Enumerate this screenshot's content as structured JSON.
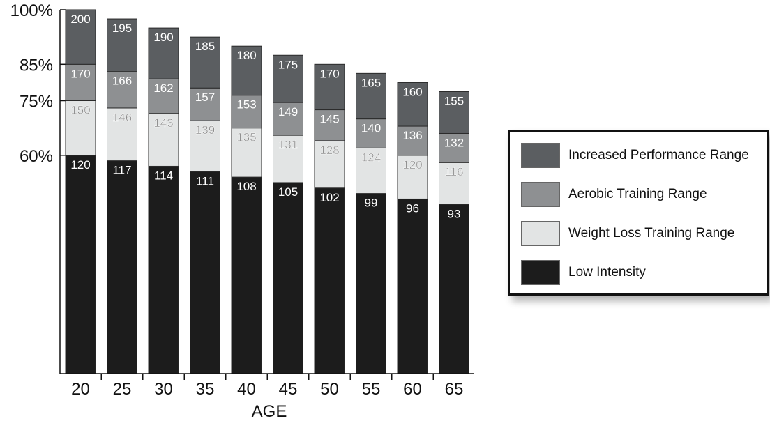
{
  "chart_data": {
    "type": "bar",
    "stacked": true,
    "title": "",
    "xlabel": "AGE",
    "ylabel": "",
    "categories": [
      "20",
      "25",
      "30",
      "35",
      "40",
      "45",
      "50",
      "55",
      "60",
      "65"
    ],
    "y_tick_labels": [
      "100%",
      "85%",
      "75%",
      "60%"
    ],
    "y_tick_values": [
      100,
      85,
      75,
      60
    ],
    "ylim": [
      0,
      100
    ],
    "max_heart_rate": [
      200,
      195,
      190,
      185,
      180,
      175,
      170,
      165,
      160,
      155
    ],
    "boundaries": {
      "60%": [
        120,
        117,
        114,
        111,
        108,
        105,
        102,
        99,
        96,
        93
      ],
      "75%": [
        150,
        146,
        143,
        139,
        135,
        131,
        128,
        124,
        120,
        116
      ],
      "85%": [
        170,
        166,
        162,
        157,
        153,
        149,
        145,
        140,
        136,
        132
      ],
      "100%": [
        200,
        195,
        190,
        185,
        180,
        175,
        170,
        165,
        160,
        155
      ]
    },
    "series": [
      {
        "name": "Low Intensity",
        "color": "#1c1c1c",
        "label_color": "#ffffff",
        "range_percent": [
          0,
          60
        ],
        "labels": [
          120,
          117,
          114,
          111,
          108,
          105,
          102,
          99,
          96,
          93
        ]
      },
      {
        "name": "Weight Loss Training Range",
        "color": "#e2e4e4",
        "label_color": "#8a8a8a",
        "range_percent": [
          60,
          75
        ],
        "labels": [
          150,
          146,
          143,
          139,
          135,
          131,
          128,
          124,
          120,
          116
        ]
      },
      {
        "name": "Aerobic Training Range",
        "color": "#8e9092",
        "label_color": "#ffffff",
        "range_percent": [
          75,
          85
        ],
        "labels": [
          170,
          166,
          162,
          157,
          153,
          149,
          145,
          140,
          136,
          132
        ]
      },
      {
        "name": "Increased Performance Range",
        "color": "#5b5e61",
        "label_color": "#ffffff",
        "range_percent": [
          85,
          100
        ],
        "labels": [
          200,
          195,
          190,
          185,
          180,
          175,
          170,
          165,
          160,
          155
        ]
      }
    ],
    "legend_position": "right",
    "grid": false
  },
  "legend": {
    "items": [
      {
        "label": "Increased Performance Range",
        "color": "#5b5e61"
      },
      {
        "label": "Aerobic Training Range",
        "color": "#8e9092"
      },
      {
        "label": "Weight Loss Training Range",
        "color": "#e2e4e4"
      },
      {
        "label": "Low Intensity",
        "color": "#1c1c1c"
      }
    ]
  }
}
